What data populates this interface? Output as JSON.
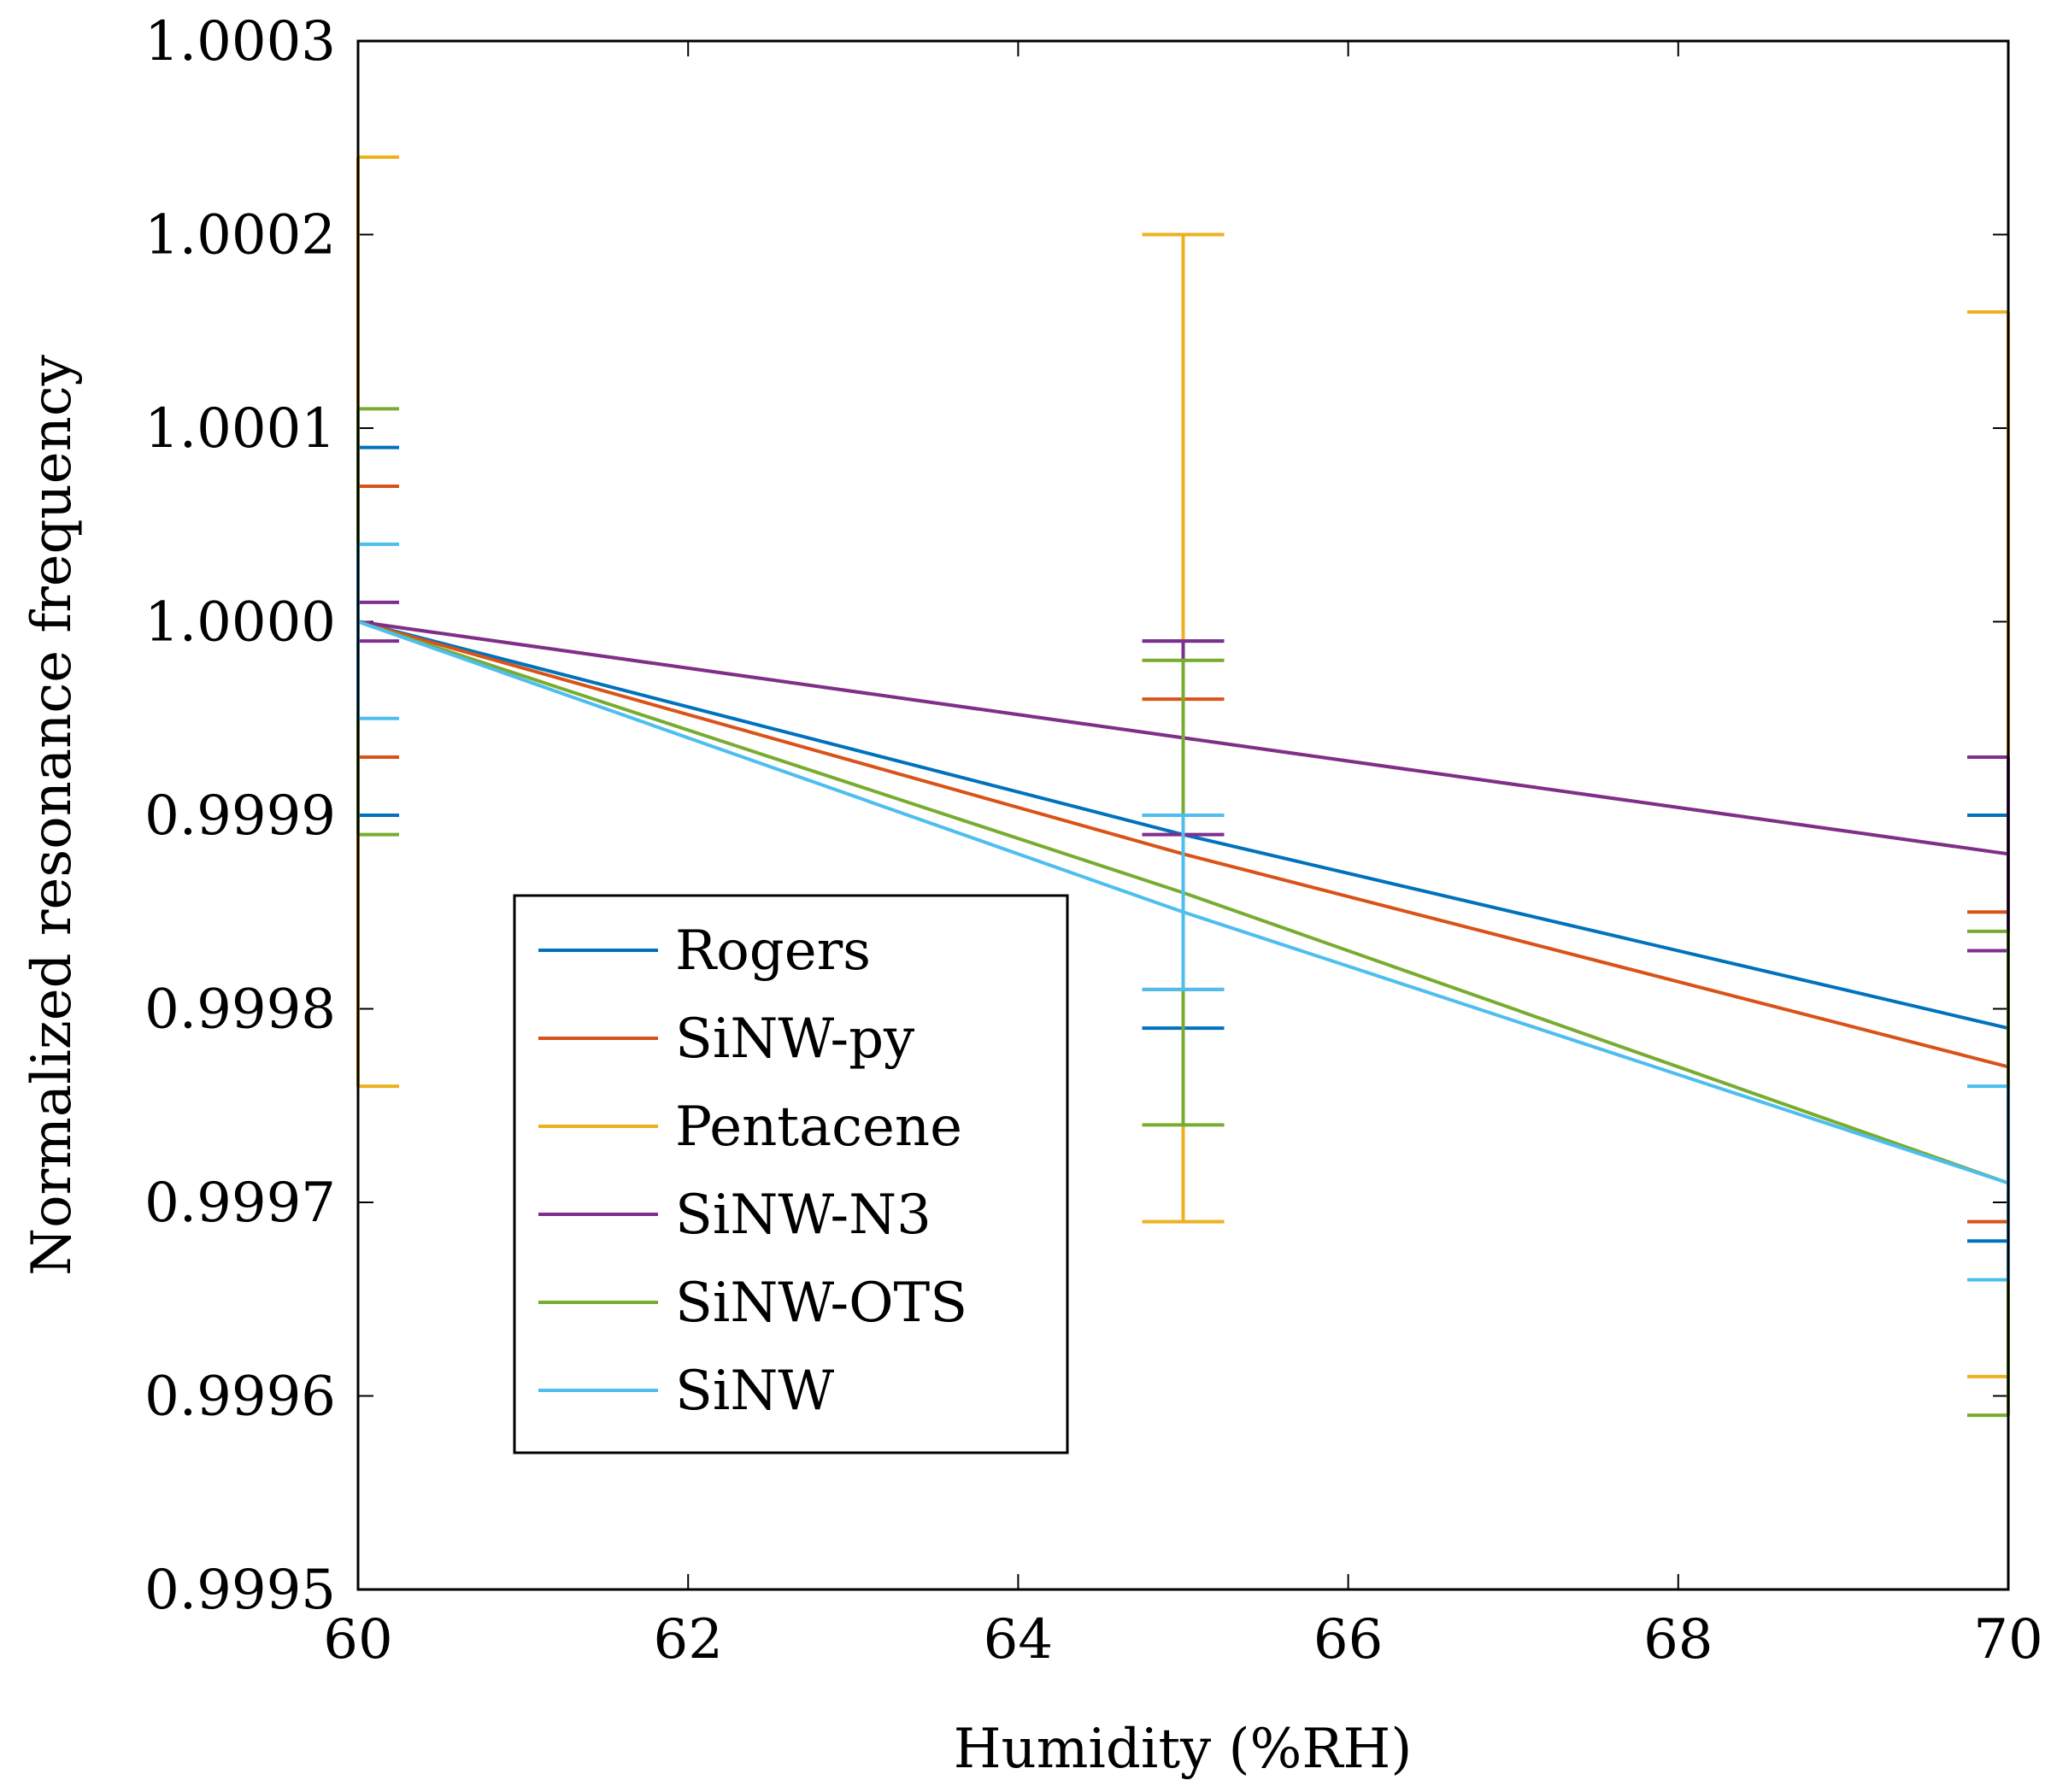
{
  "chart_data": {
    "type": "line",
    "title": "",
    "xlabel": "Humidity (%RH)",
    "ylabel": "Normalized resonance frequency",
    "xlim": [
      60,
      70
    ],
    "ylim": [
      0.9995,
      1.0003
    ],
    "x_ticks": [
      60,
      62,
      64,
      66,
      68,
      70
    ],
    "x_tick_labels": [
      "60",
      "62",
      "64",
      "66",
      "68",
      "70"
    ],
    "y_ticks": [
      0.9995,
      0.9996,
      0.9997,
      0.9998,
      0.9999,
      1.0,
      1.0001,
      1.0002,
      1.0003
    ],
    "y_tick_labels": [
      "0.9995",
      "0.9996",
      "0.9997",
      "0.9998",
      "0.9999",
      "1.0000",
      "1.0001",
      "1.0002",
      "1.0003"
    ],
    "grid": false,
    "legend_position": "lower-left",
    "x": [
      60,
      65,
      70
    ],
    "series": [
      {
        "name": "Rogers",
        "color": "#0072BD",
        "values": [
          1.0,
          0.99989,
          0.99979
        ],
        "err_low": [
          0.9999,
          0.99979,
          0.99968
        ],
        "err_high": [
          1.00009,
          0.99999,
          0.9999
        ]
      },
      {
        "name": "SiNW-py",
        "color": "#D95319",
        "values": [
          1.0,
          0.99988,
          0.99977
        ],
        "err_low": [
          0.99993,
          0.99981,
          0.99969
        ],
        "err_high": [
          1.00007,
          0.99996,
          0.99985
        ]
      },
      {
        "name": "Pentacene",
        "color": "#EDB120",
        "values": [
          1.0,
          0.99994,
          0.99988
        ],
        "err_low": [
          0.99976,
          0.99969,
          0.99961
        ],
        "err_high": [
          1.00024,
          1.0002,
          1.00016
        ]
      },
      {
        "name": "SiNW-N3",
        "color": "#7E2F8E",
        "values": [
          1.0,
          0.99994,
          0.99988
        ],
        "err_low": [
          0.99999,
          0.99989,
          0.99983
        ],
        "err_high": [
          1.00001,
          0.99999,
          0.99993
        ]
      },
      {
        "name": "SiNW-OTS",
        "color": "#77AC30",
        "values": [
          1.0,
          0.99986,
          0.99971
        ],
        "err_low": [
          0.99989,
          0.99974,
          0.99959
        ],
        "err_high": [
          1.00011,
          0.99998,
          0.99984
        ]
      },
      {
        "name": "SiNW",
        "color": "#4DBEEE",
        "values": [
          1.0,
          0.99985,
          0.99971
        ],
        "err_low": [
          0.99995,
          0.99981,
          0.99966
        ],
        "err_high": [
          1.00004,
          0.9999,
          0.99976
        ]
      }
    ]
  }
}
